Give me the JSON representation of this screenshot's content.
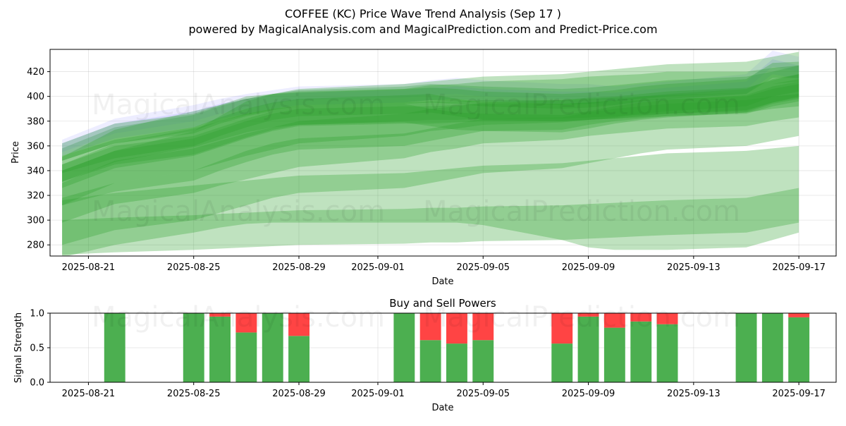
{
  "header": {
    "title": "COFFEE (KC) Price Wave Trend Analysis (Sep 17 )",
    "subtitle": "powered by MagicalAnalysis.com and MagicalPrediction.com and Predict-Price.com"
  },
  "watermarks": [
    "MagicalAnalysis.com",
    "MagicalPrediction.com"
  ],
  "colors": {
    "band_green": "#2ca02c",
    "band_blue": "#6a6aff",
    "buy": "#4caf50",
    "sell": "#ff4444"
  },
  "chart_data": [
    {
      "type": "area",
      "title": "",
      "xlabel": "Date",
      "ylabel": "Price",
      "x_ticks": [
        "2025-08-21",
        "2025-08-25",
        "2025-08-29",
        "2025-09-01",
        "2025-09-05",
        "2025-09-09",
        "2025-09-13",
        "2025-09-17"
      ],
      "y_ticks": [
        280,
        300,
        320,
        340,
        360,
        380,
        400,
        420
      ],
      "xlim": [
        "2025-08-19 13:00",
        "2025-09-18 10:00"
      ],
      "ylim": [
        271,
        438
      ],
      "grid": true,
      "dates": [
        "2025-08-20",
        "2025-08-22",
        "2025-08-25",
        "2025-08-26",
        "2025-08-27",
        "2025-08-28",
        "2025-08-29",
        "2025-09-02",
        "2025-09-03",
        "2025-09-04",
        "2025-09-05",
        "2025-09-08",
        "2025-09-09",
        "2025-09-10",
        "2025-09-11",
        "2025-09-12",
        "2025-09-15",
        "2025-09-16",
        "2025-09-17"
      ],
      "series": [
        {
          "color": "green",
          "opacity": 0.3,
          "upper": [
            358,
            375,
            385,
            392,
            398,
            402,
            405,
            408,
            410,
            409,
            408,
            406,
            407,
            409,
            411,
            413,
            416,
            420,
            425
          ],
          "lower": [
            348,
            362,
            370,
            378,
            384,
            388,
            392,
            395,
            397,
            396,
            395,
            393,
            394,
            396,
            398,
            400,
            403,
            410,
            412
          ]
        },
        {
          "color": "blue",
          "opacity": 0.12,
          "upper": [
            365,
            382,
            393,
            398,
            402,
            405,
            408,
            410,
            413,
            415,
            413,
            410,
            410,
            408,
            410,
            412,
            418,
            437,
            432
          ],
          "lower": [
            355,
            370,
            380,
            386,
            390,
            394,
            397,
            399,
            401,
            402,
            400,
            398,
            398,
            396,
            398,
            400,
            406,
            424,
            420
          ]
        },
        {
          "color": "blue",
          "opacity": 0.15,
          "upper": [
            362,
            378,
            388,
            394,
            398,
            401,
            403,
            405,
            407,
            408,
            406,
            404,
            404,
            403,
            405,
            407,
            412,
            430,
            425
          ],
          "lower": [
            352,
            366,
            375,
            382,
            386,
            390,
            393,
            395,
            397,
            398,
            396,
            394,
            394,
            393,
            395,
            397,
            402,
            418,
            414
          ]
        },
        {
          "color": "green",
          "opacity": 0.3,
          "upper": [
            362,
            378,
            386,
            393,
            398,
            402,
            404,
            406,
            407,
            406,
            404,
            402,
            403,
            405,
            408,
            410,
            414,
            427,
            428
          ],
          "lower": [
            348,
            362,
            372,
            380,
            385,
            389,
            392,
            394,
            395,
            394,
            392,
            390,
            391,
            393,
            396,
            398,
            402,
            415,
            415
          ]
        },
        {
          "color": "green",
          "opacity": 0.3,
          "upper": [
            352,
            365,
            375,
            383,
            390,
            395,
            398,
            401,
            402,
            398,
            395,
            394,
            395,
            397,
            400,
            402,
            406,
            414,
            418
          ],
          "lower": [
            338,
            350,
            360,
            368,
            375,
            381,
            384,
            386,
            387,
            384,
            381,
            380,
            381,
            383,
            386,
            388,
            392,
            400,
            404
          ]
        },
        {
          "color": "green",
          "opacity": 0.3,
          "upper": [
            345,
            360,
            368,
            375,
            382,
            388,
            392,
            394,
            390,
            387,
            386,
            385,
            388,
            392,
            395,
            397,
            401,
            408,
            412
          ],
          "lower": [
            331,
            345,
            353,
            360,
            367,
            373,
            377,
            379,
            376,
            373,
            372,
            371,
            374,
            378,
            381,
            383,
            387,
            394,
            398
          ]
        },
        {
          "color": "green",
          "opacity": 0.3,
          "upper": [
            340,
            356,
            366,
            373,
            380,
            386,
            390,
            392,
            392,
            393,
            394,
            394,
            395,
            396,
            397,
            398,
            400,
            406,
            410
          ],
          "lower": [
            326,
            342,
            352,
            359,
            366,
            372,
            376,
            378,
            378,
            379,
            380,
            380,
            381,
            382,
            383,
            384,
            386,
            392,
            396
          ]
        },
        {
          "color": "green",
          "opacity": 0.3,
          "upper": [
            345,
            362,
            374,
            380,
            386,
            390,
            392,
            395,
            396,
            396,
            397,
            397,
            398,
            399,
            400,
            401,
            403,
            410,
            414
          ],
          "lower": [
            331,
            347,
            359,
            365,
            371,
            375,
            377,
            380,
            381,
            381,
            382,
            382,
            383,
            384,
            385,
            386,
            388,
            395,
            399
          ]
        },
        {
          "color": "green",
          "opacity": 0.3,
          "upper": [
            330,
            348,
            358,
            364,
            370,
            375,
            380,
            386,
            390,
            392,
            395,
            397,
            399,
            400,
            402,
            404,
            407,
            413,
            418
          ],
          "lower": [
            312,
            330,
            340,
            346,
            352,
            357,
            362,
            368,
            372,
            374,
            377,
            379,
            381,
            382,
            384,
            386,
            389,
            395,
            400
          ]
        },
        {
          "color": "green",
          "opacity": 0.3,
          "upper": [
            351,
            373,
            388,
            393,
            400,
            402,
            403,
            406,
            409,
            410,
            412,
            414,
            416,
            417,
            418,
            420,
            420,
            423,
            425
          ],
          "lower": [
            298,
            313,
            322,
            328,
            333,
            338,
            343,
            350,
            355,
            358,
            362,
            365,
            368,
            370,
            372,
            374,
            376,
            380,
            383
          ]
        },
        {
          "color": "green",
          "opacity": 0.3,
          "upper": [
            318,
            330,
            340,
            348,
            356,
            362,
            366,
            370,
            374,
            378,
            382,
            383,
            387,
            390,
            392,
            394,
            397,
            400,
            402
          ],
          "lower": [
            312,
            323,
            332,
            340,
            347,
            353,
            357,
            360,
            364,
            368,
            372,
            373,
            377,
            380,
            382,
            384,
            387,
            390,
            392
          ]
        },
        {
          "color": "green",
          "opacity": 0.3,
          "upper": [
            340,
            356,
            372,
            384,
            396,
            402,
            406,
            410,
            412,
            414,
            416,
            418,
            420,
            422,
            424,
            426,
            428,
            432,
            436
          ],
          "lower": [
            280,
            292,
            300,
            306,
            312,
            318,
            322,
            326,
            330,
            334,
            338,
            342,
            346,
            350,
            354,
            357,
            360,
            364,
            368
          ]
        },
        {
          "color": "green",
          "opacity": 0.3,
          "upper": [
            316,
            322,
            328,
            330,
            332,
            334,
            336,
            338,
            340,
            342,
            344,
            346,
            348,
            350,
            352,
            354,
            356,
            358,
            360
          ],
          "lower": [
            270,
            280,
            290,
            294,
            297,
            298,
            298,
            298,
            298,
            298,
            296,
            284,
            278,
            276,
            276,
            276,
            278,
            284,
            290
          ]
        },
        {
          "color": "green",
          "opacity": 0.3,
          "upper": [
            300,
            302,
            304,
            305,
            306,
            307,
            308,
            309,
            310,
            310,
            311,
            312,
            313,
            314,
            315,
            316,
            318,
            322,
            326
          ],
          "lower": [
            272,
            274,
            276,
            277,
            278,
            279,
            280,
            281,
            282,
            282,
            283,
            284,
            285,
            286,
            287,
            288,
            290,
            294,
            298
          ]
        }
      ]
    },
    {
      "type": "bar",
      "title": "Buy and Sell Powers",
      "xlabel": "Date",
      "ylabel": "Signal Strength",
      "x_ticks": [
        "2025-08-21",
        "2025-08-25",
        "2025-08-29",
        "2025-09-01",
        "2025-09-05",
        "2025-09-09",
        "2025-09-13",
        "2025-09-17"
      ],
      "y_ticks": [
        "0.0",
        "0.5",
        "1.0"
      ],
      "xlim": [
        "2025-08-19 13:00",
        "2025-09-18 10:00"
      ],
      "ylim": [
        0,
        1
      ],
      "grid": true,
      "series_names": [
        "Buy",
        "Sell"
      ],
      "categories": [
        "2025-08-22",
        "2025-08-25",
        "2025-08-26",
        "2025-08-27",
        "2025-08-28",
        "2025-08-29",
        "2025-09-02",
        "2025-09-03",
        "2025-09-04",
        "2025-09-05",
        "2025-09-08",
        "2025-09-09",
        "2025-09-10",
        "2025-09-11",
        "2025-09-12",
        "2025-09-15",
        "2025-09-16",
        "2025-09-17"
      ],
      "buy": [
        1.0,
        1.0,
        0.95,
        0.72,
        1.0,
        0.67,
        1.0,
        0.61,
        0.56,
        0.61,
        0.56,
        0.95,
        0.79,
        0.88,
        0.84,
        1.0,
        1.0,
        0.94
      ],
      "sell": [
        0.0,
        0.0,
        0.05,
        0.28,
        0.0,
        0.33,
        0.0,
        0.39,
        0.44,
        0.39,
        0.44,
        0.05,
        0.21,
        0.12,
        0.16,
        0.0,
        0.0,
        0.06
      ]
    }
  ]
}
